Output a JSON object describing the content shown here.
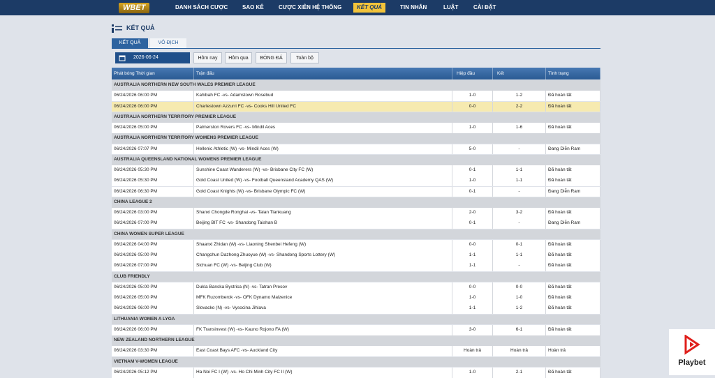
{
  "nav": {
    "logo": "WBET",
    "items": [
      "DANH SÁCH CƯỢC",
      "SAO KÊ",
      "CƯỢC XIÊN HỆ THỐNG",
      "KẾT QUẢ",
      "TIN NHẮN",
      "LUẬT",
      "CÀI ĐẶT"
    ],
    "active": 3
  },
  "page": {
    "title": "KẾT QUẢ",
    "tabs": [
      "KẾT QUẢ",
      "VÔ ĐỊCH"
    ],
    "date": "2026-06-24",
    "buttons": [
      "Hôm nay",
      "Hôm qua",
      "BÓNG ĐÁ",
      "Toàn bộ"
    ]
  },
  "table": {
    "columns": [
      "Phát bóng Thời gian",
      "Trận đấu",
      "Hiệp đầu",
      "Kết",
      "Tình trạng"
    ],
    "highlight": [
      0,
      1
    ],
    "groups": [
      {
        "league": "AUSTRALIA NORTHERN NEW SOUTH WALES PREMIER LEAGUE",
        "rows": [
          [
            "06/24/2026 06:00 PM",
            "Kahibah FC -vs- Adamstown Rosebud",
            "1-0",
            "1-2",
            "Đã hoàn tất"
          ],
          [
            "06/24/2026 06:00 PM",
            "Charlestown Azzurri FC -vs- Cooks Hill United FC",
            "0-0",
            "2-2",
            "Đã hoàn tất"
          ]
        ]
      },
      {
        "league": "AUSTRALIA NORTHERN TERRITORY PREMIER LEAGUE",
        "rows": [
          [
            "06/24/2026 05:00 PM",
            "Palmerston Rovers FC -vs- Mindil Aces",
            "1-0",
            "1-6",
            "Đã hoàn tất"
          ]
        ]
      },
      {
        "league": "AUSTRALIA NORTHERN TERRITORY WOMENS PREMIER LEAGUE",
        "rows": [
          [
            "06/24/2026 07:07 PM",
            "Hellenic Athletic (W) -vs- Mindil Aces (W)",
            "5-0",
            "-",
            "Đang Diễn Ram"
          ]
        ]
      },
      {
        "league": "AUSTRALIA QUEENSLAND NATIONAL WOMENS PREMIER LEAGUE",
        "rows": [
          [
            "06/24/2026 05:30 PM",
            "Sunshine Coast Wanderers (W) -vs- Brisbane City FC (W)",
            "0-1",
            "1-1",
            "Đã hoàn tất"
          ],
          [
            "06/24/2026 05:30 PM",
            "Gold Coast United (W) -vs- Football Queensland Academy QAS (W)",
            "1-0",
            "1-1",
            "Đã hoàn tất"
          ],
          [
            "06/24/2026 06:30 PM",
            "Gold Coast Knights (W) -vs- Brisbane Olympic FC (W)",
            "0-1",
            "-",
            "Đang Diễn Ram"
          ]
        ]
      },
      {
        "league": "CHINA LEAGUE 2",
        "rows": [
          [
            "06/24/2026 03:00 PM",
            "Shanxi Chongde Ronghai -vs- Taian Tiankuang",
            "2-0",
            "3-2",
            "Đã hoàn tất"
          ],
          [
            "06/24/2026 07:00 PM",
            "Beijing BIT FC -vs- Shandong Taishan B",
            "0-1",
            "-",
            "Đang Diễn Ram"
          ]
        ]
      },
      {
        "league": "CHINA WOMEN SUPER LEAGUE",
        "rows": [
          [
            "06/24/2026 04:00 PM",
            "Shaanxi Zhidan (W) -vs- Liaoning Shenbei Hefeng (W)",
            "0-0",
            "0-1",
            "Đã hoàn tất"
          ],
          [
            "06/24/2026 05:00 PM",
            "Changchun Dazhong Zhuoyue (W) -vs- Shandong Sports Lottery (W)",
            "1-1",
            "1-1",
            "Đã hoàn tất"
          ],
          [
            "06/24/2026 07:00 PM",
            "Sichuan FC (W) -vs- Beijing Club (W)",
            "1-1",
            "-",
            "Đã hoàn tất"
          ]
        ]
      },
      {
        "league": "CLUB FRIENDLY",
        "rows": [
          [
            "06/24/2026 05:00 PM",
            "Dukla Banska Bystrica (N) -vs- Tatran Presov",
            "0-0",
            "0-0",
            "Đã hoàn tất"
          ],
          [
            "06/24/2026 05:00 PM",
            "MFK Ruzomberok -vs- OFK Dynamo Malzenice",
            "1-0",
            "1-0",
            "Đã hoàn tất"
          ],
          [
            "06/24/2026 06:00 PM",
            "Slovacko (N) -vs- Vysocina Jihlava",
            "1-1",
            "1-2",
            "Đã hoàn tất"
          ]
        ]
      },
      {
        "league": "LITHUANIA WOMEN A LYGA",
        "rows": [
          [
            "06/24/2026 06:00 PM",
            "FK Transinvest (W) -vs- Kauno Rojono FA (W)",
            "3-0",
            "6-1",
            "Đã hoàn tất"
          ]
        ]
      },
      {
        "league": "NEW ZEALAND NORTHERN LEAGUE",
        "rows": [
          [
            "06/24/2026 03:30 PM",
            "East Coast Bays AFC -vs- Auckland City",
            "Hoàn trả",
            "Hoàn trả",
            "Hoàn trả"
          ]
        ]
      },
      {
        "league": "VIETNAM V-WOMEN LEAGUE",
        "rows": [
          [
            "06/24/2026 05:12 PM",
            "Ha Noi FC I (W) -vs- Ho Chi Minh City FC II (W)",
            "1-0",
            "2-1",
            "Đã hoàn tất"
          ]
        ]
      }
    ]
  },
  "watermark": "Playbet"
}
